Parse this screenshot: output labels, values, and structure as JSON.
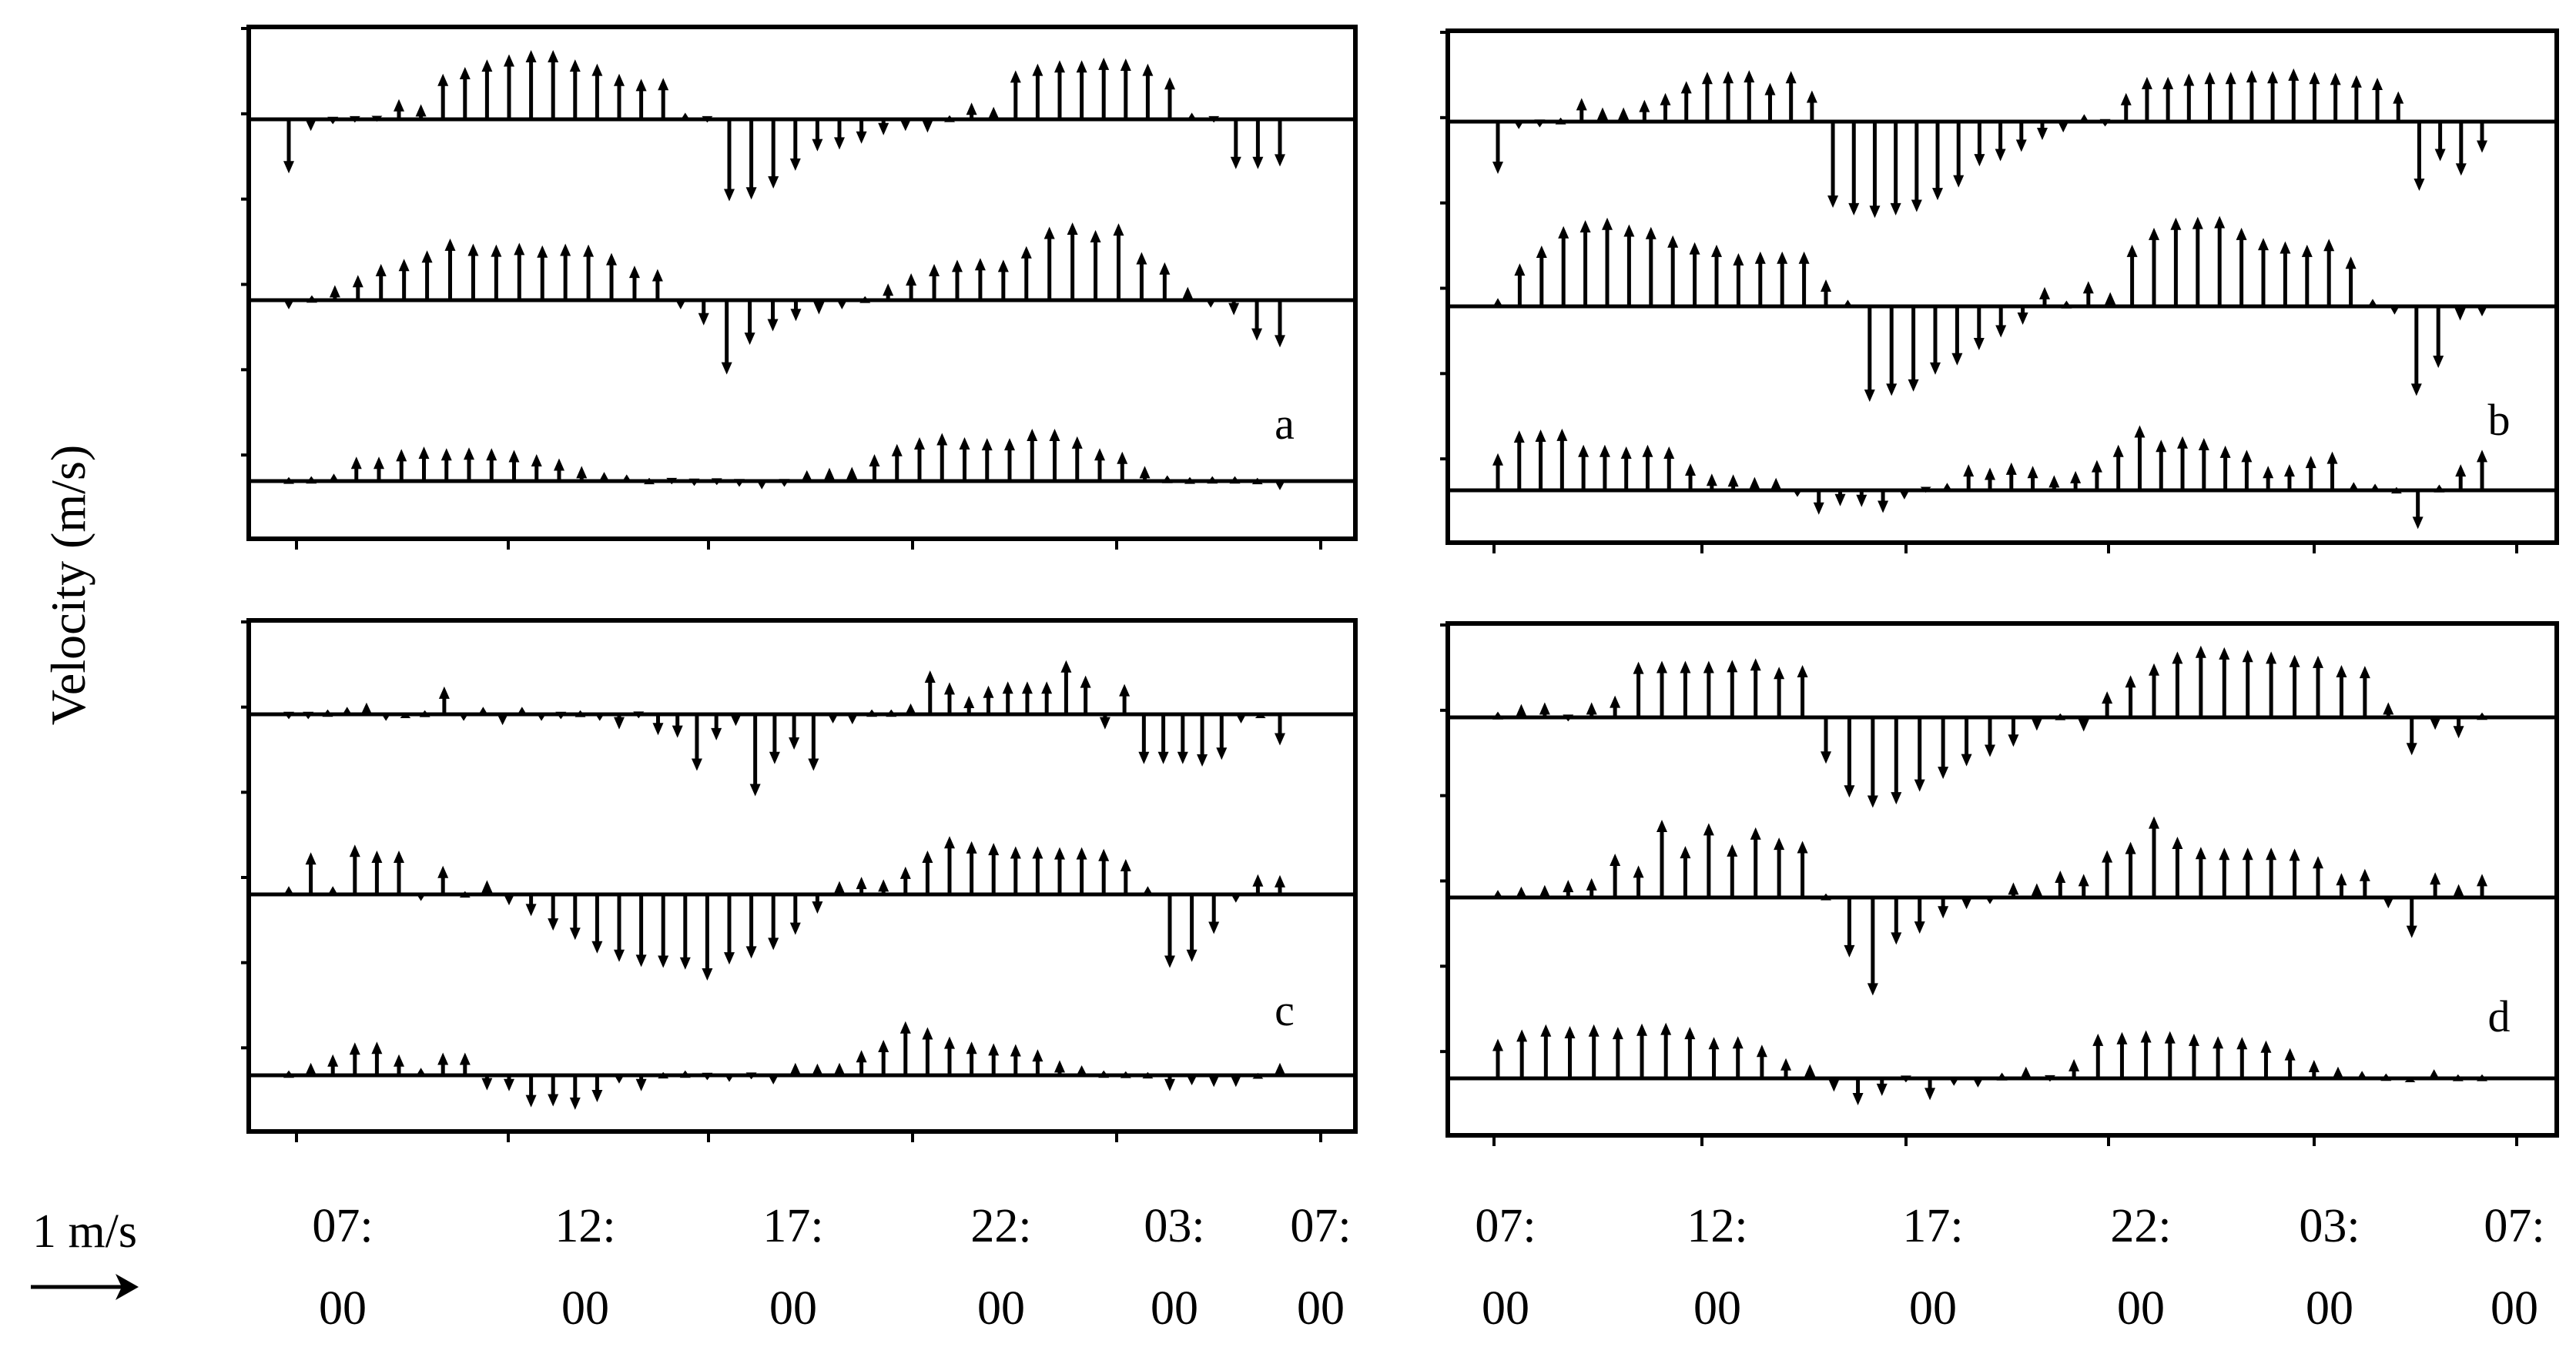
{
  "figure": {
    "ylabel": "Velocity (m/s)",
    "scale_label": "1 m/s",
    "scale_reference_ms": 1
  },
  "chart_data": [
    {
      "type": "quiver",
      "panel": "a",
      "x_ticks": [
        [
          "07:",
          "00"
        ],
        [
          "12:",
          "00"
        ],
        [
          "17:",
          "00"
        ],
        [
          "22:",
          "00"
        ],
        [
          "03:",
          "00"
        ],
        [
          "07:",
          "00"
        ]
      ],
      "series_v_ms": [
        [
          -0.62,
          -0.12,
          -0.04,
          -0.02,
          -0.01,
          0.22,
          0.16,
          0.52,
          0.6,
          0.69,
          0.75,
          0.8,
          0.8,
          0.69,
          0.64,
          0.52,
          0.46,
          0.47,
          0.06,
          -0.02,
          -0.95,
          -0.93,
          -0.8,
          -0.59,
          -0.36,
          -0.34,
          -0.27,
          -0.17,
          -0.12,
          -0.14,
          0.03,
          0.18,
          0.13,
          0.56,
          0.64,
          0.68,
          0.68,
          0.71,
          0.7,
          0.64,
          0.48,
          0.06,
          -0.02,
          -0.57,
          -0.57,
          -0.54
        ],
        [
          -0.09,
          0.04,
          0.16,
          0.28,
          0.41,
          0.47,
          0.57,
          0.71,
          0.65,
          0.64,
          0.66,
          0.63,
          0.65,
          0.64,
          0.54,
          0.39,
          0.35,
          -0.09,
          -0.28,
          -0.86,
          -0.51,
          -0.35,
          -0.23,
          -0.15,
          -0.09,
          0.03,
          0.18,
          0.3,
          0.41,
          0.46,
          0.48,
          0.46,
          0.62,
          0.85,
          0.9,
          0.81,
          0.89,
          0.55,
          0.43,
          0.14,
          -0.07,
          -0.16,
          -0.46,
          -0.54
        ],
        [
          0.03,
          0.04,
          0.07,
          0.27,
          0.27,
          0.36,
          0.39,
          0.37,
          0.38,
          0.37,
          0.35,
          0.3,
          0.25,
          0.16,
          0.09,
          0.06,
          0.02,
          -0.02,
          -0.04,
          -0.03,
          -0.05,
          -0.08,
          -0.05,
          0.11,
          0.14,
          0.15,
          0.3,
          0.42,
          0.5,
          0.55,
          0.5,
          0.49,
          0.49,
          0.6,
          0.6,
          0.51,
          0.37,
          0.33,
          0.16,
          0.05,
          0.03,
          0.04,
          0.04,
          0.02,
          -0.09
        ]
      ]
    },
    {
      "type": "quiver",
      "panel": "b",
      "x_ticks": [
        [
          "07:",
          "00"
        ],
        [
          "12:",
          "00"
        ],
        [
          "17:",
          "00"
        ],
        [
          "22:",
          "00"
        ],
        [
          "03:",
          "00"
        ],
        [
          "07:",
          "00"
        ]
      ],
      "series_v_ms": [
        [
          -0.6,
          -0.07,
          -0.05,
          0.03,
          0.26,
          0.15,
          0.15,
          0.24,
          0.32,
          0.46,
          0.57,
          0.58,
          0.59,
          0.44,
          0.58,
          0.35,
          -1.0,
          -1.09,
          -1.12,
          -1.09,
          -1.05,
          -0.91,
          -0.76,
          -0.51,
          -0.45,
          -0.34,
          -0.2,
          -0.11,
          0.07,
          -0.04,
          0.32,
          0.51,
          0.51,
          0.55,
          0.57,
          0.57,
          0.59,
          0.58,
          0.61,
          0.57,
          0.56,
          0.53,
          0.5,
          0.34,
          -0.8,
          -0.45,
          -0.62,
          -0.35
        ],
        [
          0.08,
          0.49,
          0.7,
          0.93,
          1.0,
          1.03,
          0.95,
          0.92,
          0.82,
          0.74,
          0.71,
          0.61,
          0.63,
          0.63,
          0.63,
          0.3,
          0.06,
          -1.11,
          -1.04,
          -0.99,
          -0.79,
          -0.68,
          -0.5,
          -0.35,
          -0.2,
          0.21,
          0.05,
          0.28,
          0.15,
          0.71,
          0.91,
          1.03,
          1.04,
          1.05,
          0.91,
          0.79,
          0.75,
          0.71,
          0.78,
          0.57,
          0.07,
          -0.08,
          -1.04,
          -0.71,
          -0.15,
          -0.1
        ],
        [
          0.42,
          0.69,
          0.7,
          0.71,
          0.52,
          0.52,
          0.5,
          0.52,
          0.5,
          0.3,
          0.18,
          0.17,
          0.14,
          0.13,
          -0.06,
          -0.27,
          -0.17,
          -0.18,
          -0.25,
          -0.09,
          -0.01,
          0.07,
          0.29,
          0.25,
          0.31,
          0.27,
          0.16,
          0.21,
          0.34,
          0.52,
          0.75,
          0.58,
          0.62,
          0.6,
          0.51,
          0.46,
          0.27,
          0.29,
          0.39,
          0.44,
          0.08,
          0.06,
          0.02,
          -0.44,
          0.05,
          0.29,
          0.46
        ]
      ]
    },
    {
      "type": "quiver",
      "panel": "c",
      "x_ticks": [
        [
          "07:",
          "00"
        ],
        [
          "12:",
          "00"
        ],
        [
          "17:",
          "00"
        ],
        [
          "22:",
          "00"
        ],
        [
          "03:",
          "00"
        ],
        [
          "07:",
          "00"
        ]
      ],
      "series_v_ms": [
        [
          -0.04,
          -0.04,
          0.04,
          0.07,
          0.12,
          -0.06,
          0.0,
          0.03,
          0.31,
          -0.06,
          0.07,
          -0.11,
          0.07,
          -0.06,
          -0.04,
          0.03,
          -0.06,
          -0.16,
          -0.03,
          -0.23,
          -0.26,
          -0.65,
          -0.29,
          -0.12,
          -0.95,
          -0.57,
          -0.4,
          -0.65,
          -0.09,
          -0.1,
          0.04,
          0.04,
          0.11,
          0.5,
          0.36,
          0.2,
          0.32,
          0.37,
          0.37,
          0.37,
          0.62,
          0.44,
          -0.16,
          0.34,
          -0.57,
          -0.57,
          -0.57,
          -0.6,
          -0.52,
          -0.09,
          0.0,
          -0.35
        ],
        [
          0.08,
          0.48,
          0.08,
          0.57,
          0.5,
          0.5,
          -0.06,
          0.32,
          0.02,
          0.15,
          -0.11,
          -0.24,
          -0.41,
          -0.52,
          -0.68,
          -0.78,
          -0.84,
          -0.85,
          -0.87,
          -1.0,
          -0.81,
          -0.74,
          -0.64,
          -0.46,
          -0.21,
          0.14,
          0.19,
          0.16,
          0.31,
          0.5,
          0.67,
          0.61,
          0.59,
          0.55,
          0.55,
          0.54,
          0.54,
          0.52,
          0.4,
          0.08,
          -0.85,
          -0.78,
          -0.45,
          -0.08,
          0.22,
          0.21
        ],
        [
          0.04,
          0.13,
          0.23,
          0.37,
          0.38,
          0.23,
          0.07,
          0.25,
          0.25,
          -0.16,
          -0.17,
          -0.36,
          -0.35,
          -0.39,
          -0.3,
          -0.08,
          -0.17,
          0.02,
          0.04,
          -0.04,
          -0.06,
          -0.03,
          -0.09,
          0.13,
          0.12,
          0.13,
          0.28,
          0.4,
          0.62,
          0.55,
          0.44,
          0.38,
          0.36,
          0.35,
          0.29,
          0.16,
          0.1,
          0.04,
          0.03,
          0.02,
          -0.17,
          -0.1,
          -0.12,
          -0.12,
          0.01,
          0.13
        ]
      ]
    },
    {
      "type": "quiver",
      "panel": "d",
      "x_ticks": [
        [
          "07:",
          "00"
        ],
        [
          "12:",
          "00"
        ],
        [
          "17:",
          "00"
        ],
        [
          "22:",
          "00"
        ],
        [
          "03:",
          "00"
        ],
        [
          "07:",
          "00"
        ]
      ],
      "series_v_ms": [
        [
          0.05,
          0.14,
          0.16,
          -0.03,
          0.16,
          0.24,
          0.64,
          0.65,
          0.65,
          0.65,
          0.66,
          0.68,
          0.58,
          0.6,
          -0.53,
          -0.93,
          -1.05,
          -1.01,
          -0.86,
          -0.71,
          -0.56,
          -0.45,
          -0.33,
          -0.14,
          0.03,
          -0.15,
          0.29,
          0.48,
          0.62,
          0.76,
          0.83,
          0.81,
          0.78,
          0.76,
          0.72,
          0.71,
          0.6,
          0.59,
          0.16,
          -0.43,
          -0.13,
          -0.23,
          0.04
        ],
        [
          0.07,
          0.11,
          0.13,
          0.19,
          0.21,
          0.5,
          0.36,
          0.9,
          0.59,
          0.86,
          0.61,
          0.81,
          0.69,
          0.65,
          0.03,
          -0.69,
          -1.14,
          -0.54,
          -0.41,
          -0.23,
          -0.12,
          -0.06,
          0.16,
          0.15,
          0.3,
          0.26,
          0.54,
          0.64,
          0.94,
          0.7,
          0.58,
          0.57,
          0.57,
          0.57,
          0.56,
          0.47,
          0.27,
          0.32,
          -0.11,
          -0.46,
          0.28,
          0.14,
          0.26
        ],
        [
          0.45,
          0.56,
          0.62,
          0.6,
          0.62,
          0.59,
          0.63,
          0.64,
          0.59,
          0.47,
          0.48,
          0.38,
          0.22,
          0.15,
          -0.14,
          -0.3,
          -0.19,
          -0.03,
          -0.24,
          -0.07,
          -0.09,
          0.05,
          0.12,
          -0.02,
          0.21,
          0.51,
          0.53,
          0.55,
          0.54,
          0.51,
          0.48,
          0.47,
          0.43,
          0.34,
          0.2,
          0.12,
          0.07,
          0.04,
          0.0,
          0.09,
          0.03,
          0.03
        ]
      ]
    }
  ]
}
